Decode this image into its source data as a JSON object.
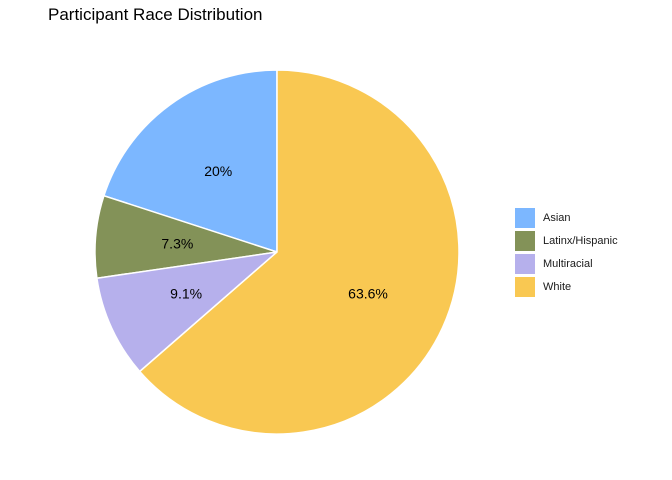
{
  "chart_data": {
    "type": "pie",
    "title": "Participant Race Distribution",
    "categories": [
      "Asian",
      "Latinx/Hispanic",
      "Multiracial",
      "White"
    ],
    "values": [
      20,
      7.3,
      9.1,
      63.6
    ],
    "labels": [
      "20%",
      "7.3%",
      "9.1%",
      "63.6%"
    ],
    "colors": [
      "#7cb7ff",
      "#839258",
      "#b6b0ec",
      "#f9c852"
    ],
    "direction": "counterclockwise",
    "start_angle": "top",
    "legend_position": "right"
  }
}
